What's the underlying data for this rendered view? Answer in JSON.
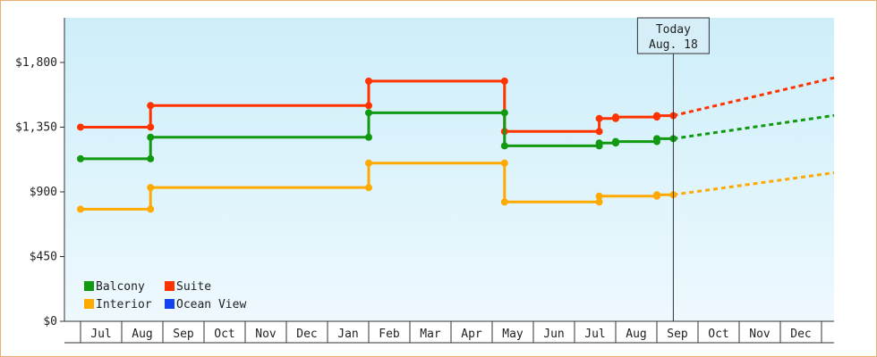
{
  "chart_data": {
    "type": "line",
    "step": true,
    "y_ticks": [
      {
        "value": 0,
        "label": "$0"
      },
      {
        "value": 450,
        "label": "$450"
      },
      {
        "value": 900,
        "label": "$900"
      },
      {
        "value": 1350,
        "label": "$1,350"
      },
      {
        "value": 1800,
        "label": "$1,800"
      }
    ],
    "ylim": [
      0,
      2110
    ],
    "x_labels": [
      "Jul",
      "Aug",
      "Sep",
      "Oct",
      "Nov",
      "Dec",
      "Jan",
      "Feb",
      "Mar",
      "Apr",
      "May",
      "Jun",
      "Jul",
      "Aug",
      "Sep",
      "Oct",
      "Nov",
      "Dec"
    ],
    "today": {
      "line1": "Today",
      "line2": "Aug. 18",
      "x": 14.4
    },
    "grid": false,
    "legend_position": "bottom-left",
    "series": [
      {
        "name": "Suite",
        "color": "#ff3300",
        "points": [
          [
            0,
            1350
          ],
          [
            1.7,
            1350
          ],
          [
            1.7,
            1500
          ],
          [
            7,
            1500
          ],
          [
            7,
            1670
          ],
          [
            10.3,
            1670
          ],
          [
            10.3,
            1320
          ],
          [
            12.6,
            1320
          ],
          [
            12.6,
            1410
          ],
          [
            13,
            1410
          ],
          [
            13,
            1420
          ],
          [
            14,
            1420
          ],
          [
            14,
            1430
          ],
          [
            14.4,
            1430
          ]
        ],
        "forecast": [
          [
            14.4,
            1430
          ],
          [
            19,
            1740
          ]
        ]
      },
      {
        "name": "Balcony",
        "color": "#119911",
        "points": [
          [
            0,
            1130
          ],
          [
            1.7,
            1130
          ],
          [
            1.7,
            1280
          ],
          [
            7,
            1280
          ],
          [
            7,
            1450
          ],
          [
            10.3,
            1450
          ],
          [
            10.3,
            1220
          ],
          [
            12.6,
            1220
          ],
          [
            12.6,
            1240
          ],
          [
            13,
            1240
          ],
          [
            13,
            1250
          ],
          [
            14,
            1250
          ],
          [
            14,
            1270
          ],
          [
            14.4,
            1270
          ]
        ],
        "forecast": [
          [
            14.4,
            1270
          ],
          [
            19,
            1460
          ]
        ]
      },
      {
        "name": "Interior",
        "color": "#ffaa00",
        "points": [
          [
            0,
            780
          ],
          [
            1.7,
            780
          ],
          [
            1.7,
            930
          ],
          [
            7,
            930
          ],
          [
            7,
            1100
          ],
          [
            10.3,
            1100
          ],
          [
            10.3,
            830
          ],
          [
            12.6,
            830
          ],
          [
            12.6,
            870
          ],
          [
            14,
            870
          ],
          [
            14,
            880
          ],
          [
            14.4,
            880
          ]
        ],
        "forecast": [
          [
            14.4,
            880
          ],
          [
            19,
            1060
          ]
        ]
      },
      {
        "name": "Ocean View",
        "color": "#1144ee",
        "points": [],
        "forecast": []
      }
    ]
  },
  "legend": [
    {
      "label": "Balcony",
      "color": "#119911"
    },
    {
      "label": "Suite",
      "color": "#ff3300"
    },
    {
      "label": "Interior",
      "color": "#ffaa00"
    },
    {
      "label": "Ocean View",
      "color": "#1144ee"
    }
  ]
}
